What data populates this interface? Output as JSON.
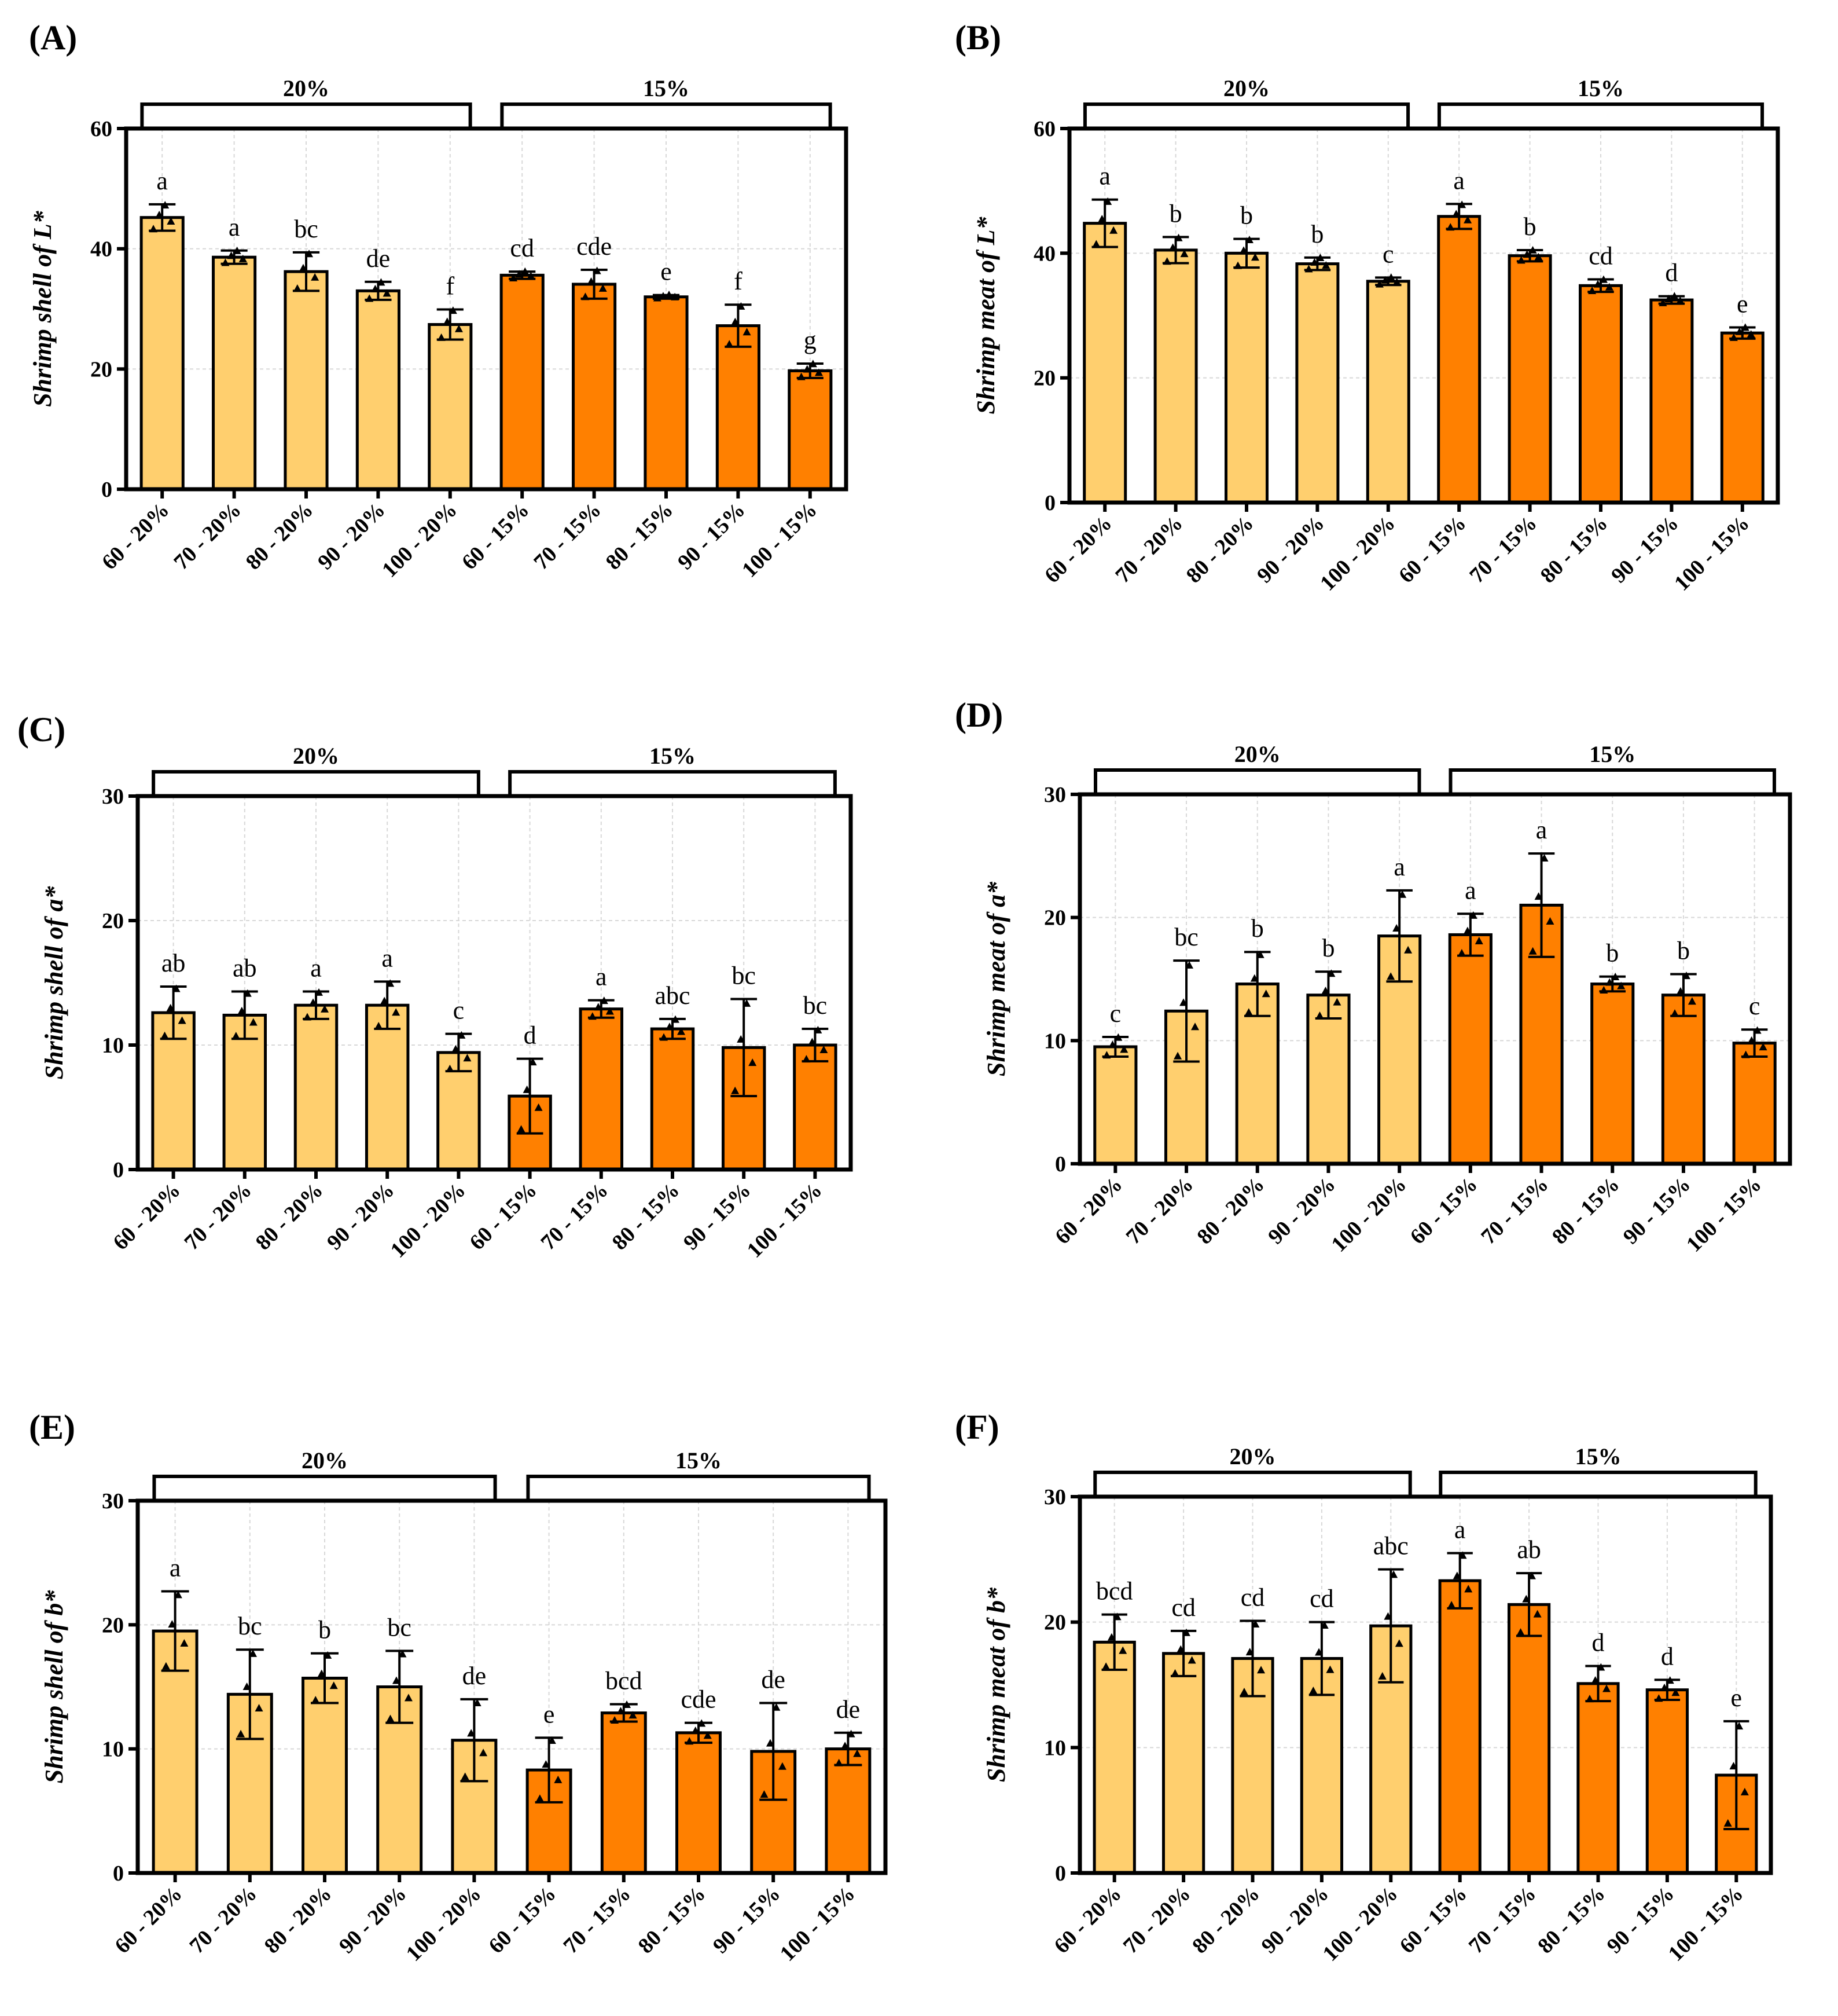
{
  "colors": {
    "light": "#FFCF6E",
    "dark": "#FF8000",
    "stroke": "#000000",
    "grid": "#D8D8D8"
  },
  "chart_data": [
    {
      "id": "A",
      "panel_label": "(A)",
      "type": "bar",
      "ylabel": "Shrimp shell of L*",
      "ylim": [
        0,
        60
      ],
      "yticks": [
        0,
        20,
        40,
        60
      ],
      "grid": true,
      "groups": [
        "20%",
        "15%"
      ],
      "categories": [
        "60 - 20%",
        "70 - 20%",
        "80 - 20%",
        "90 - 20%",
        "100 - 20%",
        "60 - 15%",
        "70 - 15%",
        "80 - 15%",
        "90 - 15%",
        "100 - 15%"
      ],
      "values": [
        45.2,
        38.6,
        36.2,
        33.0,
        27.4,
        35.6,
        34.1,
        32.0,
        27.2,
        19.7
      ],
      "errors": [
        2.2,
        1.1,
        3.2,
        1.5,
        2.5,
        0.6,
        2.4,
        0.3,
        3.5,
        1.2
      ],
      "letters": [
        "a",
        "a",
        "bc",
        "de",
        "f",
        "cd",
        "cde",
        "e",
        "f",
        "g"
      ]
    },
    {
      "id": "B",
      "panel_label": "(B)",
      "type": "bar",
      "ylabel": "Shrimp meat of L*",
      "ylim": [
        0,
        60
      ],
      "yticks": [
        0,
        20,
        40,
        60
      ],
      "grid": true,
      "groups": [
        "20%",
        "15%"
      ],
      "categories": [
        "60 - 20%",
        "70 - 20%",
        "80 - 20%",
        "90 - 20%",
        "100 - 20%",
        "60 - 15%",
        "70 - 15%",
        "80 - 15%",
        "90 - 15%",
        "100 - 15%"
      ],
      "values": [
        44.8,
        40.5,
        40.0,
        38.3,
        35.5,
        45.9,
        39.6,
        34.8,
        32.5,
        27.2
      ],
      "errors": [
        3.8,
        2.1,
        2.3,
        1.0,
        0.6,
        2.0,
        0.9,
        1.0,
        0.6,
        0.9
      ],
      "letters": [
        "a",
        "b",
        "b",
        "b",
        "c",
        "a",
        "b",
        "cd",
        "d",
        "e"
      ]
    },
    {
      "id": "C",
      "panel_label": "(C)",
      "type": "bar",
      "ylabel": "Shrimp shell of a*",
      "ylim": [
        0,
        30
      ],
      "yticks": [
        0,
        10,
        20,
        30
      ],
      "grid": true,
      "groups": [
        "20%",
        "15%"
      ],
      "categories": [
        "60 - 20%",
        "70 - 20%",
        "80 - 20%",
        "90 - 20%",
        "100 - 20%",
        "60 - 15%",
        "70 - 15%",
        "80 - 15%",
        "90 - 15%",
        "100 - 15%"
      ],
      "values": [
        12.6,
        12.4,
        13.2,
        13.2,
        9.4,
        5.9,
        12.9,
        11.3,
        9.8,
        10.0
      ],
      "errors": [
        2.1,
        1.9,
        1.1,
        1.9,
        1.5,
        3.0,
        0.7,
        0.8,
        3.9,
        1.3
      ],
      "letters": [
        "ab",
        "ab",
        "a",
        "a",
        "c",
        "d",
        "a",
        "abc",
        "bc",
        "bc"
      ]
    },
    {
      "id": "D",
      "panel_label": "(D)",
      "type": "bar",
      "ylabel": "Shrimp meat of a*",
      "ylim": [
        0,
        30
      ],
      "yticks": [
        0,
        10,
        20,
        30
      ],
      "grid": true,
      "groups": [
        "20%",
        "15%"
      ],
      "categories": [
        "60 - 20%",
        "70 - 20%",
        "80 - 20%",
        "90 - 20%",
        "100 - 20%",
        "60 - 15%",
        "70 - 15%",
        "80 - 15%",
        "90 - 15%",
        "100 - 15%"
      ],
      "values": [
        9.5,
        12.4,
        14.6,
        13.7,
        18.5,
        18.6,
        21.0,
        14.6,
        13.7,
        9.8
      ],
      "errors": [
        0.8,
        4.1,
        2.6,
        1.9,
        3.7,
        1.7,
        4.2,
        0.6,
        1.7,
        1.1
      ],
      "letters": [
        "c",
        "bc",
        "b",
        "b",
        "a",
        "a",
        "a",
        "b",
        "b",
        "c"
      ]
    },
    {
      "id": "E",
      "panel_label": "(E)",
      "type": "bar",
      "ylabel": "Shrimp shell of b*",
      "ylim": [
        0,
        30
      ],
      "yticks": [
        0,
        10,
        20,
        30
      ],
      "grid": true,
      "groups": [
        "20%",
        "15%"
      ],
      "categories": [
        "60 - 20%",
        "70 - 20%",
        "80 - 20%",
        "90 - 20%",
        "100 - 20%",
        "60 - 15%",
        "70 - 15%",
        "80 - 15%",
        "90 - 15%",
        "100 - 15%"
      ],
      "values": [
        19.5,
        14.4,
        15.7,
        15.0,
        10.7,
        8.3,
        12.9,
        11.3,
        9.8,
        10.0
      ],
      "errors": [
        3.2,
        3.6,
        2.0,
        2.9,
        3.3,
        2.6,
        0.7,
        0.8,
        3.9,
        1.3
      ],
      "letters": [
        "a",
        "bc",
        "b",
        "bc",
        "de",
        "e",
        "bcd",
        "cde",
        "de",
        "de"
      ]
    },
    {
      "id": "F",
      "panel_label": "(F)",
      "type": "bar",
      "ylabel": "Shrimp meat of b*",
      "ylim": [
        0,
        30
      ],
      "yticks": [
        0,
        10,
        20,
        30
      ],
      "grid": true,
      "groups": [
        "20%",
        "15%"
      ],
      "categories": [
        "60 - 20%",
        "70 - 20%",
        "80 - 20%",
        "90 - 20%",
        "100 - 20%",
        "60 - 15%",
        "70 - 15%",
        "80 - 15%",
        "90 - 15%",
        "100 - 15%"
      ],
      "values": [
        18.4,
        17.5,
        17.1,
        17.1,
        19.7,
        23.3,
        21.4,
        15.1,
        14.6,
        7.8
      ],
      "errors": [
        2.2,
        1.8,
        3.0,
        2.9,
        4.5,
        2.2,
        2.5,
        1.4,
        0.8,
        4.3
      ],
      "letters": [
        "bcd",
        "cd",
        "cd",
        "cd",
        "abc",
        "a",
        "ab",
        "d",
        "d",
        "e"
      ]
    }
  ]
}
